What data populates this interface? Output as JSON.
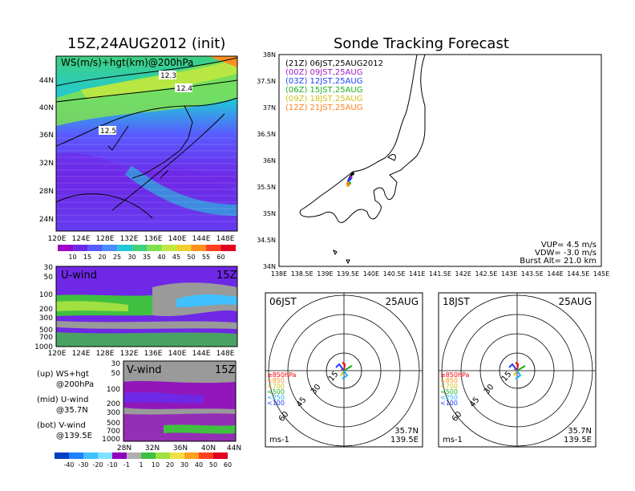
{
  "left_title": "15Z,24AUG2012 (init)",
  "right_title": "Sonde Tracking Forecast",
  "top_panel": {
    "label": "WS(m/s)+hgt(km)@200hPa",
    "lon_ticks": [
      "120E",
      "124E",
      "128E",
      "132E",
      "136E",
      "140E",
      "144E",
      "148E"
    ],
    "lat_ticks": [
      "44N",
      "40N",
      "36N",
      "32N",
      "28N",
      "24N"
    ],
    "contours": [
      "12.3",
      "12.4",
      "12.5"
    ],
    "colorbar_labels": [
      "10",
      "15",
      "20",
      "25",
      "30",
      "35",
      "40",
      "45",
      "50",
      "55",
      "60"
    ],
    "colorbar_colors": [
      "#a000c8",
      "#6e28e6",
      "#5a5aff",
      "#4a8cff",
      "#20c8d8",
      "#40d080",
      "#80e050",
      "#c0e840",
      "#f0d030",
      "#ff9020",
      "#ff4020",
      "#e00020"
    ]
  },
  "u_panel": {
    "label": "U-wind",
    "time": "15Z",
    "p_ticks": [
      "30",
      "50",
      "100",
      "200",
      "300",
      "500",
      "700",
      "1000"
    ],
    "lon_ticks": [
      "120E",
      "124E",
      "128E",
      "132E",
      "136E",
      "140E",
      "144E",
      "148E"
    ]
  },
  "v_panel": {
    "label": "V-wind",
    "time": "15Z",
    "p_ticks": [
      "30",
      "50",
      "100",
      "200",
      "300",
      "500",
      "700",
      "1000"
    ],
    "lat_ticks": [
      "28N",
      "32N",
      "36N",
      "40N",
      "44N"
    ]
  },
  "side_notes": [
    {
      "line1": "(up) WS+hgt",
      "line2": "@200hPa"
    },
    {
      "line1": "(mid) U-wind",
      "line2": "@35.7N"
    },
    {
      "line1": "(bot) V-wind",
      "line2": "@139.5E"
    }
  ],
  "bottom_colorbar": {
    "labels": [
      "-40",
      "-30",
      "-20",
      "-10",
      "-1",
      "1",
      "10",
      "20",
      "30",
      "40",
      "50",
      "60"
    ],
    "colors": [
      "#0040c0",
      "#2080ff",
      "#40c0ff",
      "#80e0ff",
      "#9000c0",
      "#b0b0b0",
      "#40c040",
      "#a0e040",
      "#f0e040",
      "#ffa020",
      "#ff4020",
      "#e00020"
    ]
  },
  "map_panel": {
    "lat_ticks": [
      "38N",
      "37.5N",
      "37N",
      "36.5N",
      "36N",
      "35.5N",
      "35N",
      "34.5N",
      "34N"
    ],
    "lon_ticks": [
      "138E",
      "138.5E",
      "139E",
      "139.5E",
      "140E",
      "140.5E",
      "141E",
      "141.5E",
      "142E",
      "142.5E",
      "143E",
      "143.5E",
      "144E",
      "144.5E",
      "145E"
    ],
    "legend": [
      {
        "text": "(21Z)  06JST,25AUG2012",
        "color": "#000000"
      },
      {
        "text": "(00Z)  09JST,25AUG",
        "color": "#a020c0"
      },
      {
        "text": "(03Z)  12JST,25AUG",
        "color": "#2040ff"
      },
      {
        "text": "(06Z)  15JST,25AUG",
        "color": "#20b020"
      },
      {
        "text": "(09Z)  18JST,25AUG",
        "color": "#d0c020"
      },
      {
        "text": "(12Z)  21JST,25AUG",
        "color": "#ff8020"
      }
    ],
    "params": [
      "VUP= 4.5 m/s",
      "VDW= -3.0 m/s",
      "Burst Alt= 21.0 km"
    ]
  },
  "hodographs": [
    {
      "time": "06JST",
      "date": "25AUG",
      "lat": "35.7N",
      "lon": "139.5E",
      "unit": "ms-1",
      "ring_labels": [
        "15",
        "30",
        "45",
        "60"
      ],
      "levels": [
        {
          "text": "≥850hPa",
          "color": "#ff0000"
        },
        {
          "text": "<850",
          "color": "#ff9020"
        },
        {
          "text": "<700",
          "color": "#d0c020"
        },
        {
          "text": "<500",
          "color": "#20b020"
        },
        {
          "text": "<250",
          "color": "#20b0ff"
        },
        {
          "text": "<100",
          "color": "#2040ff"
        }
      ]
    },
    {
      "time": "18JST",
      "date": "25AUG",
      "lat": "35.7N",
      "lon": "139.5E",
      "unit": "ms-1",
      "ring_labels": [
        "15",
        "30",
        "45",
        "60"
      ],
      "levels": [
        {
          "text": "≥850hPa",
          "color": "#ff0000"
        },
        {
          "text": "<850",
          "color": "#ff9020"
        },
        {
          "text": "<700",
          "color": "#d0c020"
        },
        {
          "text": "<500",
          "color": "#20b020"
        },
        {
          "text": "<250",
          "color": "#20b0ff"
        },
        {
          "text": "<100",
          "color": "#2040ff"
        }
      ]
    }
  ],
  "chart_data": [
    {
      "type": "heatmap",
      "title": "WS(m/s)+hgt(km)@200hPa",
      "xlabel": "",
      "ylabel": "",
      "xlim": [
        120,
        150
      ],
      "ylim": [
        22,
        47
      ],
      "x_ticks": [
        120,
        124,
        128,
        132,
        136,
        140,
        144,
        148
      ],
      "y_ticks": [
        24,
        28,
        32,
        36,
        40,
        44
      ],
      "contour_labels": [
        12.3,
        12.4,
        12.5
      ],
      "colorbar": [
        10,
        15,
        20,
        25,
        30,
        35,
        40,
        45,
        50,
        55,
        60
      ]
    },
    {
      "type": "heatmap",
      "title": "U-wind",
      "xlim": [
        120,
        150
      ],
      "y_axis": "pressure hPa (log)",
      "y_ticks": [
        30,
        50,
        100,
        200,
        300,
        500,
        700,
        1000
      ]
    },
    {
      "type": "heatmap",
      "title": "V-wind",
      "xlim": [
        28,
        44
      ],
      "y_axis": "pressure hPa (log)",
      "y_ticks": [
        30,
        50,
        100,
        200,
        300,
        500,
        700,
        1000
      ]
    },
    {
      "type": "scatter",
      "title": "Sonde Tracking Forecast",
      "xlim": [
        138,
        145
      ],
      "ylim": [
        34,
        38
      ],
      "series": [
        {
          "name": "(21Z) 06JST,25AUG2012",
          "x": [
            139.5,
            139.52,
            139.55,
            139.6
          ],
          "y": [
            35.6,
            35.65,
            35.7,
            35.75
          ]
        },
        {
          "name": "(00Z) 09JST,25AUG",
          "x": [
            139.5,
            139.53,
            139.56
          ],
          "y": [
            35.6,
            35.64,
            35.68
          ]
        },
        {
          "name": "(03Z) 12JST,25AUG",
          "x": [
            139.5,
            139.52,
            139.54
          ],
          "y": [
            35.6,
            35.62,
            35.65
          ]
        },
        {
          "name": "(06Z) 15JST,25AUG",
          "x": [
            139.5,
            139.51,
            139.53
          ],
          "y": [
            35.6,
            35.58,
            35.57
          ]
        },
        {
          "name": "(09Z) 18JST,25AUG",
          "x": [
            139.5,
            139.48,
            139.5
          ],
          "y": [
            35.6,
            35.56,
            35.53
          ]
        },
        {
          "name": "(12Z) 21JST,25AUG",
          "x": [
            139.5,
            139.49,
            139.5
          ],
          "y": [
            35.6,
            35.57,
            35.55
          ]
        }
      ]
    }
  ]
}
